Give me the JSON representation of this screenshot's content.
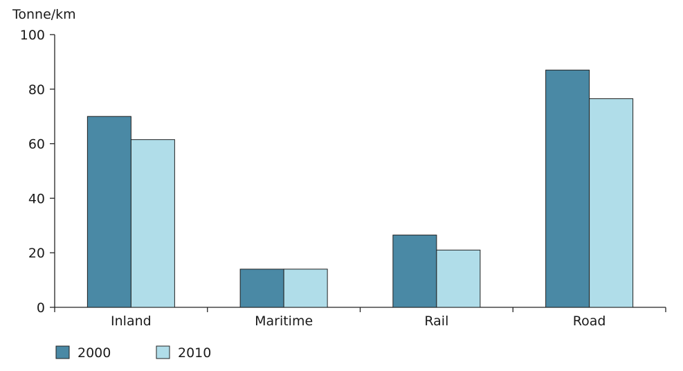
{
  "chart_data": {
    "type": "bar",
    "title": "",
    "ylabel": "Tonne/km",
    "xlabel": "",
    "categories": [
      "Inland",
      "Maritime",
      "Rail",
      "Road"
    ],
    "ylim": [
      0,
      100
    ],
    "yticks": [
      0,
      20,
      40,
      60,
      80,
      100
    ],
    "grid": false,
    "legend_position": "bottom-left",
    "series": [
      {
        "name": "2000",
        "color": "#4a89a5",
        "values": [
          70,
          14,
          26.5,
          87
        ]
      },
      {
        "name": "2010",
        "color": "#b0dde9",
        "values": [
          61.5,
          14,
          21,
          76.5
        ]
      }
    ]
  }
}
